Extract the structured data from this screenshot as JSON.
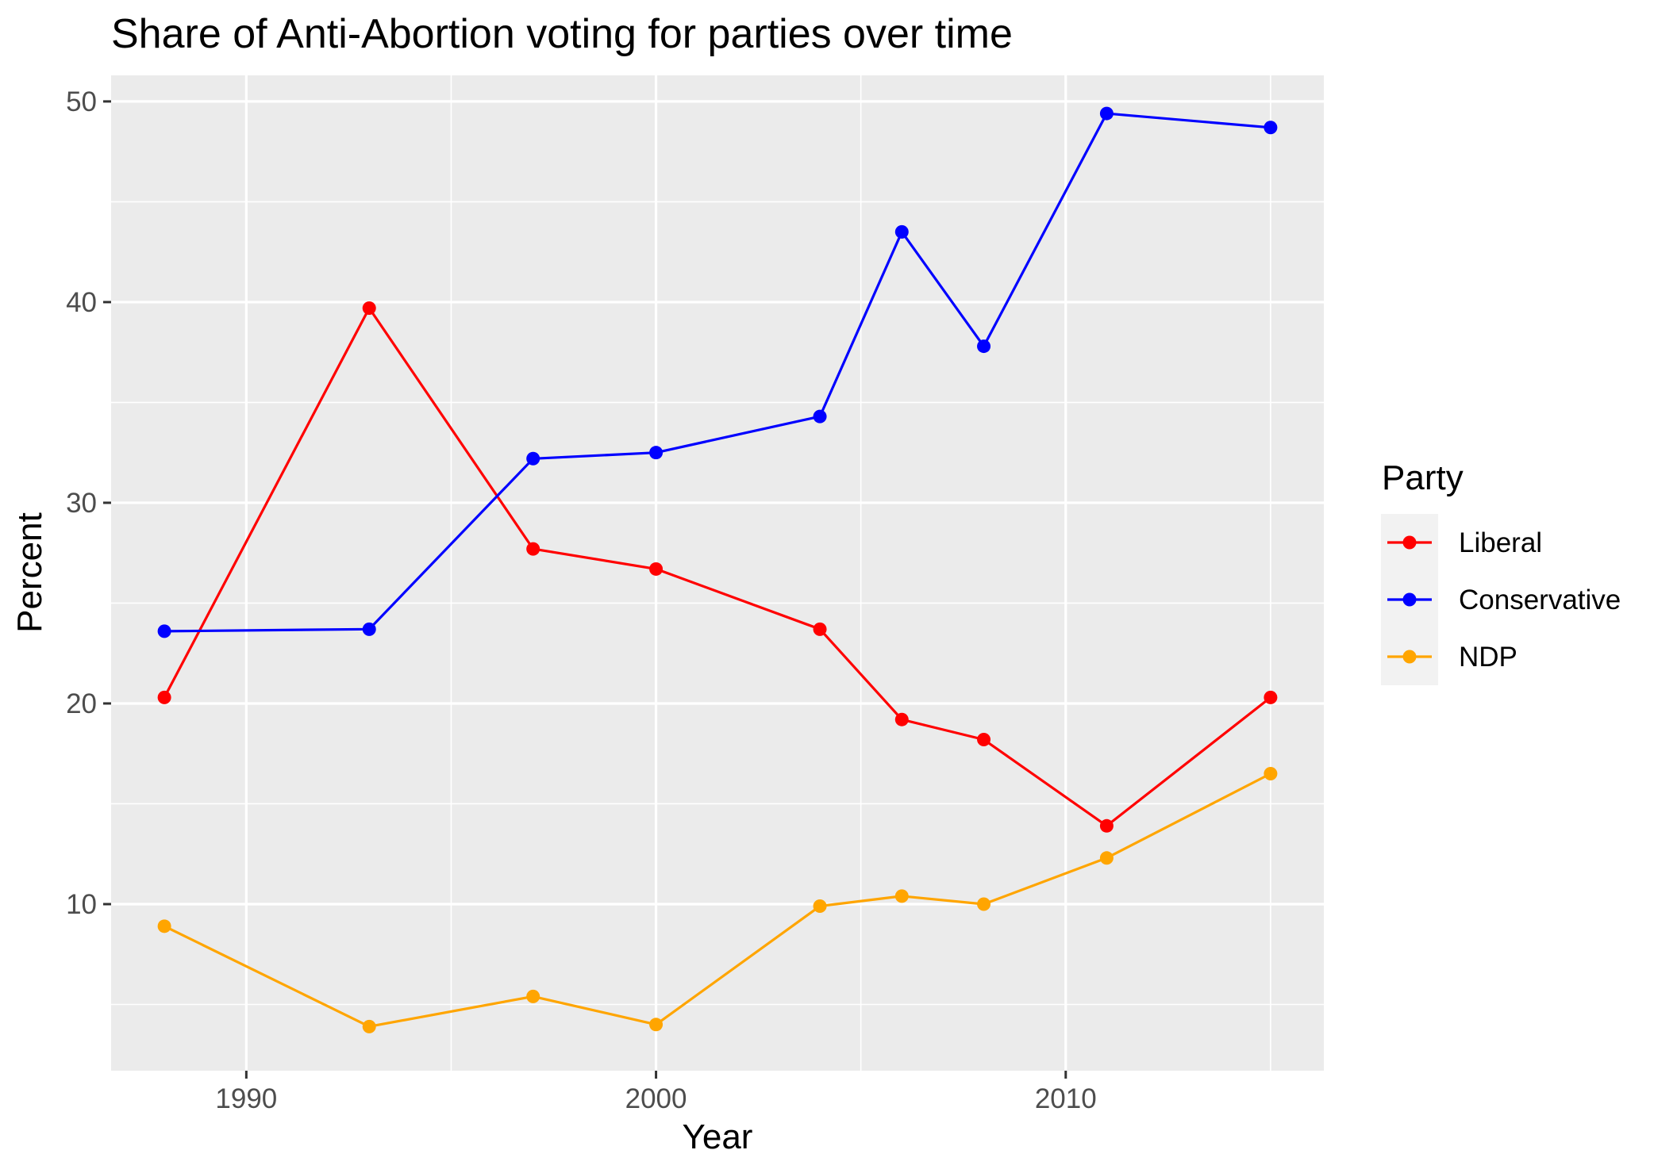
{
  "chart_data": {
    "type": "line",
    "title": "Share of Anti-Abortion voting for parties over time",
    "xlabel": "Year",
    "ylabel": "Percent",
    "xlim": [
      1986.7,
      2016.3
    ],
    "ylim": [
      1.7,
      51.3
    ],
    "x_ticks": [
      1990,
      2000,
      2010
    ],
    "y_ticks": [
      10,
      20,
      30,
      40,
      50
    ],
    "grid": true,
    "legend": {
      "title": "Party",
      "position": "right"
    },
    "x": [
      1988,
      1993,
      1997,
      2000,
      2004,
      2006,
      2008,
      2011,
      2015
    ],
    "series": [
      {
        "name": "Liberal",
        "color": "#ff0000",
        "values": [
          20.3,
          39.7,
          27.7,
          26.7,
          23.7,
          19.2,
          18.2,
          13.9,
          20.3
        ]
      },
      {
        "name": "Conservative",
        "color": "#0000ff",
        "values": [
          23.6,
          23.7,
          32.2,
          32.5,
          34.3,
          43.5,
          37.8,
          49.4,
          48.7
        ]
      },
      {
        "name": "NDP",
        "color": "#ffa500",
        "values": [
          8.9,
          3.9,
          5.4,
          4.0,
          9.9,
          10.4,
          10.0,
          12.3,
          16.5
        ]
      }
    ]
  }
}
